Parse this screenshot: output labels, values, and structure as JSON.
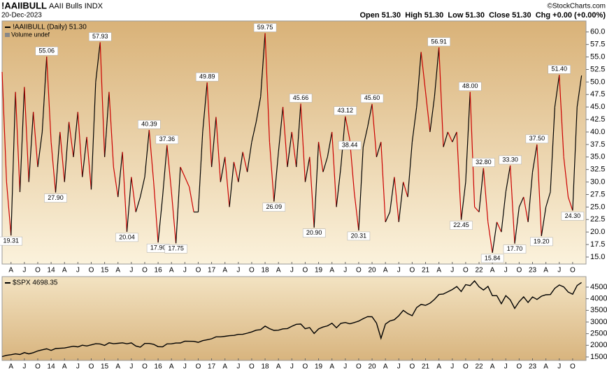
{
  "header": {
    "title": "!AAIIBULL",
    "subtitle": "AAII Bulls INDX",
    "date": "20-Dec-2023",
    "credit": "©StockCharts.com",
    "quote": "Open 51.30  High 51.30  Low 51.30  Close 51.30  Chg +0.00 (+0.00%)"
  },
  "chart_data": [
    {
      "type": "line",
      "legend_label": "!AAIIBULL (Daily) 51.30",
      "volume_label": "Volume undef",
      "up_color": "#000000",
      "down_color": "#cc0000",
      "xlim": [
        "2013-02",
        "2024-01"
      ],
      "ylim": [
        13.6,
        62.2
      ],
      "yticks": [
        {
          "value": 15,
          "label": "15.0"
        },
        {
          "value": 17.5,
          "label": "17.5"
        },
        {
          "value": 20,
          "label": "20.0"
        },
        {
          "value": 22.5,
          "label": "22.5"
        },
        {
          "value": 25,
          "label": "25.0"
        },
        {
          "value": 27.5,
          "label": "27.5"
        },
        {
          "value": 30,
          "label": "30.0"
        },
        {
          "value": 32.5,
          "label": "32.5"
        },
        {
          "value": 35,
          "label": "35.0"
        },
        {
          "value": 37.5,
          "label": "37.5"
        },
        {
          "value": 40,
          "label": "40.0"
        },
        {
          "value": 42.5,
          "label": "42.5"
        },
        {
          "value": 45,
          "label": "45.0"
        },
        {
          "value": 47.5,
          "label": "47.5"
        },
        {
          "value": 50,
          "label": "50.0"
        },
        {
          "value": 52.5,
          "label": "52.5"
        },
        {
          "value": 55,
          "label": "55.0"
        },
        {
          "value": 57.5,
          "label": "57.5"
        },
        {
          "value": 60,
          "label": "60.0"
        }
      ],
      "xticks": [
        {
          "value": "2013-04",
          "label": "A"
        },
        {
          "value": "2013-07",
          "label": "J"
        },
        {
          "value": "2013-10",
          "label": "O"
        },
        {
          "value": "2014-01",
          "label": "14"
        },
        {
          "value": "2014-04",
          "label": "A"
        },
        {
          "value": "2014-07",
          "label": "J"
        },
        {
          "value": "2014-10",
          "label": "O"
        },
        {
          "value": "2015-01",
          "label": "15"
        },
        {
          "value": "2015-04",
          "label": "A"
        },
        {
          "value": "2015-07",
          "label": "J"
        },
        {
          "value": "2015-10",
          "label": "O"
        },
        {
          "value": "2016-01",
          "label": "16"
        },
        {
          "value": "2016-04",
          "label": "A"
        },
        {
          "value": "2016-07",
          "label": "J"
        },
        {
          "value": "2016-10",
          "label": "O"
        },
        {
          "value": "2017-01",
          "label": "17"
        },
        {
          "value": "2017-04",
          "label": "A"
        },
        {
          "value": "2017-07",
          "label": "J"
        },
        {
          "value": "2017-10",
          "label": "O"
        },
        {
          "value": "2018-01",
          "label": "18"
        },
        {
          "value": "2018-04",
          "label": "A"
        },
        {
          "value": "2018-07",
          "label": "J"
        },
        {
          "value": "2018-10",
          "label": "O"
        },
        {
          "value": "2019-01",
          "label": "19"
        },
        {
          "value": "2019-04",
          "label": "A"
        },
        {
          "value": "2019-07",
          "label": "J"
        },
        {
          "value": "2019-10",
          "label": "O"
        },
        {
          "value": "2020-01",
          "label": "20"
        },
        {
          "value": "2020-04",
          "label": "A"
        },
        {
          "value": "2020-07",
          "label": "J"
        },
        {
          "value": "2020-10",
          "label": "O"
        },
        {
          "value": "2021-01",
          "label": "21"
        },
        {
          "value": "2021-04",
          "label": "A"
        },
        {
          "value": "2021-07",
          "label": "J"
        },
        {
          "value": "2021-10",
          "label": "O"
        },
        {
          "value": "2022-01",
          "label": "22"
        },
        {
          "value": "2022-04",
          "label": "A"
        },
        {
          "value": "2022-07",
          "label": "J"
        },
        {
          "value": "2022-10",
          "label": "O"
        },
        {
          "value": "2023-01",
          "label": "23"
        },
        {
          "value": "2023-04",
          "label": "A"
        },
        {
          "value": "2023-07",
          "label": "J"
        },
        {
          "value": "2023-10",
          "label": "O"
        }
      ],
      "x": [
        "2013-02",
        "2013-03",
        "2013-04",
        "2013-05",
        "2013-06",
        "2013-07",
        "2013-08",
        "2013-09",
        "2013-10",
        "2013-11",
        "2013-12",
        "2014-01",
        "2014-02",
        "2014-03",
        "2014-04",
        "2014-05",
        "2014-06",
        "2014-07",
        "2014-08",
        "2014-09",
        "2014-10",
        "2014-11",
        "2014-12",
        "2015-01",
        "2015-02",
        "2015-03",
        "2015-04",
        "2015-05",
        "2015-06",
        "2015-07",
        "2015-08",
        "2015-09",
        "2015-10",
        "2015-11",
        "2015-12",
        "2016-01",
        "2016-02",
        "2016-03",
        "2016-04",
        "2016-05",
        "2016-06",
        "2016-07",
        "2016-08",
        "2016-09",
        "2016-10",
        "2016-11",
        "2016-12",
        "2017-01",
        "2017-02",
        "2017-03",
        "2017-04",
        "2017-05",
        "2017-06",
        "2017-07",
        "2017-08",
        "2017-09",
        "2017-10",
        "2017-11",
        "2017-12",
        "2018-01",
        "2018-02",
        "2018-03",
        "2018-04",
        "2018-05",
        "2018-06",
        "2018-07",
        "2018-08",
        "2018-09",
        "2018-10",
        "2018-11",
        "2018-12",
        "2019-01",
        "2019-02",
        "2019-03",
        "2019-04",
        "2019-05",
        "2019-06",
        "2019-07",
        "2019-08",
        "2019-09",
        "2019-10",
        "2019-11",
        "2019-12",
        "2020-01",
        "2020-02",
        "2020-03",
        "2020-04",
        "2020-05",
        "2020-06",
        "2020-07",
        "2020-08",
        "2020-09",
        "2020-10",
        "2020-11",
        "2020-12",
        "2021-01",
        "2021-02",
        "2021-03",
        "2021-04",
        "2021-05",
        "2021-06",
        "2021-07",
        "2021-08",
        "2021-09",
        "2021-10",
        "2021-11",
        "2021-12",
        "2022-01",
        "2022-02",
        "2022-03",
        "2022-04",
        "2022-05",
        "2022-06",
        "2022-07",
        "2022-08",
        "2022-09",
        "2022-10",
        "2022-11",
        "2022-12",
        "2023-01",
        "2023-02",
        "2023-03",
        "2023-04",
        "2023-05",
        "2023-06",
        "2023-07",
        "2023-08",
        "2023-09",
        "2023-10",
        "2023-11",
        "2023-12"
      ],
      "values": [
        52,
        30,
        19.31,
        48,
        28,
        49,
        30,
        44,
        33,
        40,
        55.06,
        38,
        27.9,
        40,
        30,
        42,
        35,
        44,
        31,
        39,
        28.5,
        50,
        57.93,
        35,
        48,
        33,
        27,
        36,
        20.04,
        31,
        24,
        27,
        31,
        40.39,
        30,
        17.9,
        27,
        37.36,
        28,
        17.75,
        33,
        31,
        29,
        24,
        24,
        40,
        49.89,
        33,
        43,
        30,
        35,
        25,
        34,
        30,
        36,
        32,
        38,
        42,
        47,
        59.75,
        38,
        26.09,
        36,
        45,
        33,
        40,
        33,
        45.66,
        30,
        35,
        20.9,
        38,
        32,
        35,
        40,
        25,
        33,
        43.12,
        38.44,
        28,
        20.31,
        37,
        41,
        45.6,
        35,
        38,
        22,
        24,
        31,
        22,
        30,
        27,
        38,
        45,
        56,
        48,
        40,
        47,
        56.91,
        37,
        40,
        38,
        40,
        22.45,
        30,
        48.0,
        25,
        24,
        32.8,
        22,
        15.84,
        22,
        20,
        28,
        33.3,
        17.7,
        25,
        27,
        22,
        32,
        37.5,
        19.2,
        25,
        28,
        45,
        51.4,
        35,
        27,
        24.3,
        45,
        51.3
      ],
      "value_labels": [
        null,
        null,
        "19.31",
        null,
        null,
        null,
        null,
        null,
        null,
        null,
        "55.06",
        null,
        "27.90",
        null,
        null,
        null,
        null,
        null,
        null,
        null,
        null,
        null,
        "57.93",
        null,
        null,
        null,
        null,
        null,
        "20.04",
        null,
        null,
        null,
        null,
        "40.39",
        null,
        "17.90",
        null,
        "37.36",
        null,
        "17.75",
        null,
        null,
        null,
        null,
        null,
        null,
        "49.89",
        null,
        null,
        null,
        null,
        null,
        null,
        null,
        null,
        null,
        null,
        null,
        null,
        "59.75",
        null,
        "26.09",
        null,
        null,
        null,
        null,
        null,
        "45.66",
        null,
        null,
        "20.90",
        null,
        null,
        null,
        null,
        null,
        null,
        "43.12",
        "38.44",
        null,
        "20.31",
        null,
        null,
        "45.60",
        null,
        null,
        null,
        null,
        null,
        null,
        null,
        null,
        null,
        null,
        null,
        null,
        null,
        null,
        "56.91",
        null,
        null,
        null,
        null,
        "22.45",
        null,
        "48.00",
        null,
        null,
        "32.80",
        null,
        "15.84",
        null,
        null,
        null,
        "33.30",
        "17.70",
        null,
        null,
        null,
        null,
        "37.50",
        "19.20",
        null,
        null,
        null,
        "51.40",
        null,
        null,
        "24.30",
        null,
        null
      ]
    },
    {
      "type": "line",
      "legend_label": "$SPX 4698.35",
      "color": "#000000",
      "xlim": [
        "2013-02",
        "2024-01"
      ],
      "ylim": [
        1350,
        4950
      ],
      "yticks": [
        1500,
        2000,
        2500,
        3000,
        3500,
        4000,
        4500
      ],
      "x": [
        "2013-02",
        "2013-03",
        "2013-04",
        "2013-05",
        "2013-06",
        "2013-07",
        "2013-08",
        "2013-09",
        "2013-10",
        "2013-11",
        "2013-12",
        "2014-01",
        "2014-02",
        "2014-03",
        "2014-04",
        "2014-05",
        "2014-06",
        "2014-07",
        "2014-08",
        "2014-09",
        "2014-10",
        "2014-11",
        "2014-12",
        "2015-01",
        "2015-02",
        "2015-03",
        "2015-04",
        "2015-05",
        "2015-06",
        "2015-07",
        "2015-08",
        "2015-09",
        "2015-10",
        "2015-11",
        "2015-12",
        "2016-01",
        "2016-02",
        "2016-03",
        "2016-04",
        "2016-05",
        "2016-06",
        "2016-07",
        "2016-08",
        "2016-09",
        "2016-10",
        "2016-11",
        "2016-12",
        "2017-01",
        "2017-02",
        "2017-03",
        "2017-04",
        "2017-05",
        "2017-06",
        "2017-07",
        "2017-08",
        "2017-09",
        "2017-10",
        "2017-11",
        "2017-12",
        "2018-01",
        "2018-02",
        "2018-03",
        "2018-04",
        "2018-05",
        "2018-06",
        "2018-07",
        "2018-08",
        "2018-09",
        "2018-10",
        "2018-11",
        "2018-12",
        "2019-01",
        "2019-02",
        "2019-03",
        "2019-04",
        "2019-05",
        "2019-06",
        "2019-07",
        "2019-08",
        "2019-09",
        "2019-10",
        "2019-11",
        "2019-12",
        "2020-01",
        "2020-02",
        "2020-03",
        "2020-04",
        "2020-05",
        "2020-06",
        "2020-07",
        "2020-08",
        "2020-09",
        "2020-10",
        "2020-11",
        "2020-12",
        "2021-01",
        "2021-02",
        "2021-03",
        "2021-04",
        "2021-05",
        "2021-06",
        "2021-07",
        "2021-08",
        "2021-09",
        "2021-10",
        "2021-11",
        "2021-12",
        "2022-01",
        "2022-02",
        "2022-03",
        "2022-04",
        "2022-05",
        "2022-06",
        "2022-07",
        "2022-08",
        "2022-09",
        "2022-10",
        "2022-11",
        "2022-12",
        "2023-01",
        "2023-02",
        "2023-03",
        "2023-04",
        "2023-05",
        "2023-06",
        "2023-07",
        "2023-08",
        "2023-09",
        "2023-10",
        "2023-11",
        "2023-12"
      ],
      "values": [
        1515,
        1569,
        1597,
        1631,
        1606,
        1686,
        1633,
        1682,
        1757,
        1806,
        1848,
        1783,
        1859,
        1872,
        1884,
        1924,
        1960,
        1931,
        2003,
        1972,
        2018,
        2068,
        2059,
        1995,
        2105,
        2068,
        2086,
        2107,
        2063,
        2104,
        1972,
        1920,
        2079,
        2080,
        2044,
        1940,
        1932,
        2060,
        2065,
        2097,
        2099,
        2174,
        2171,
        2168,
        2126,
        2199,
        2239,
        2279,
        2364,
        2363,
        2384,
        2412,
        2423,
        2470,
        2472,
        2519,
        2575,
        2648,
        2674,
        2824,
        2714,
        2641,
        2648,
        2705,
        2718,
        2816,
        2902,
        2914,
        2711,
        2760,
        2507,
        2704,
        2784,
        2834,
        2946,
        2752,
        2942,
        2980,
        2926,
        2977,
        3038,
        3141,
        3231,
        3226,
        2954,
        2300,
        2912,
        3044,
        3100,
        3271,
        3500,
        3363,
        3270,
        3622,
        3756,
        3714,
        3811,
        3973,
        4181,
        4204,
        4298,
        4395,
        4523,
        4308,
        4605,
        4567,
        4766,
        4516,
        4374,
        4530,
        4132,
        4132,
        3785,
        4130,
        3955,
        3586,
        3872,
        4080,
        3840,
        4077,
        3970,
        4109,
        4169,
        4180,
        4450,
        4589,
        4508,
        4288,
        4194,
        4568,
        4698.35
      ]
    }
  ]
}
